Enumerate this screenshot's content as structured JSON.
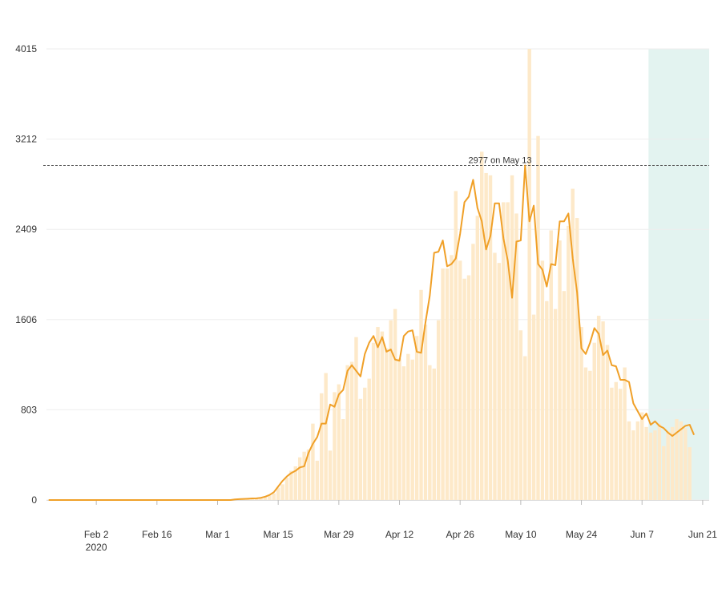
{
  "chart_data": {
    "type": "bar",
    "title": "",
    "xlabel": "",
    "ylabel": "",
    "x_start": "2020-01-22",
    "x_end": "2020-06-23",
    "xlim": [
      "2020-01-22",
      "2020-06-23"
    ],
    "ylim": [
      0,
      4015
    ],
    "y_ticks": [
      "0",
      "803",
      "1606",
      "2409",
      "3212",
      "4015"
    ],
    "x_ticks": [
      {
        "date": "2020-02-02",
        "label": "Feb 2",
        "sublabel": "2020"
      },
      {
        "date": "2020-02-16",
        "label": "Feb 16",
        "sublabel": ""
      },
      {
        "date": "2020-03-01",
        "label": "Mar 1",
        "sublabel": ""
      },
      {
        "date": "2020-03-15",
        "label": "Mar 15",
        "sublabel": ""
      },
      {
        "date": "2020-03-29",
        "label": "Mar 29",
        "sublabel": ""
      },
      {
        "date": "2020-04-12",
        "label": "Apr 12",
        "sublabel": ""
      },
      {
        "date": "2020-04-26",
        "label": "Apr 26",
        "sublabel": ""
      },
      {
        "date": "2020-05-10",
        "label": "May 10",
        "sublabel": ""
      },
      {
        "date": "2020-05-24",
        "label": "May 24",
        "sublabel": ""
      },
      {
        "date": "2020-06-07",
        "label": "Jun 7",
        "sublabel": ""
      },
      {
        "date": "2020-06-21",
        "label": "Jun 21",
        "sublabel": ""
      }
    ],
    "grid": true,
    "reference_line": {
      "value": 2977,
      "label": "2977 on May 13"
    },
    "highlight_range": [
      "2020-06-09",
      "2020-06-22"
    ],
    "colors": {
      "bars": "#fde9c9",
      "line": "#f0a028",
      "highlight": "#e3f3f0",
      "reference": "#555555"
    },
    "series": [
      {
        "type": "bar",
        "values": [
          0,
          0,
          0,
          0,
          0,
          0,
          0,
          0,
          0,
          0,
          0,
          0,
          0,
          0,
          0,
          0,
          0,
          0,
          0,
          0,
          0,
          0,
          0,
          0,
          0,
          0,
          0,
          0,
          0,
          0,
          0,
          0,
          0,
          0,
          0,
          0,
          0,
          0,
          0,
          0,
          0,
          0,
          0,
          5,
          5,
          10,
          10,
          15,
          15,
          25,
          30,
          40,
          60,
          110,
          140,
          200,
          260,
          300,
          380,
          430,
          450,
          680,
          350,
          950,
          1130,
          440,
          960,
          1030,
          720,
          1200,
          1230,
          1450,
          900,
          1000,
          1080,
          1400,
          1540,
          1500,
          1350,
          1600,
          1700,
          1260,
          1190,
          1300,
          1250,
          1460,
          1870,
          1560,
          1200,
          1170,
          1600,
          2060,
          2060,
          2180,
          2750,
          2130,
          1970,
          2000,
          2280,
          2530,
          3100,
          2910,
          2890,
          2200,
          2110,
          2650,
          2650,
          2890,
          2550,
          1510,
          1280,
          4015,
          1650,
          3240,
          2130,
          1770,
          2400,
          1700,
          2310,
          1860,
          2440,
          2770,
          2510,
          1540,
          1180,
          1150,
          1400,
          1640,
          1590,
          1380,
          1000,
          1050,
          990,
          1180,
          700,
          620,
          700,
          780,
          650,
          600,
          620,
          680,
          480,
          610,
          650,
          720,
          700,
          640,
          470
        ],
        "unit": "daily count"
      },
      {
        "type": "line",
        "name": "",
        "values": [
          0,
          0,
          0,
          0,
          0,
          0,
          0,
          0,
          0,
          0,
          0,
          0,
          0,
          0,
          0,
          0,
          0,
          0,
          0,
          0,
          0,
          0,
          0,
          0,
          0,
          0,
          0,
          0,
          0,
          0,
          0,
          0,
          0,
          0,
          0,
          0,
          0,
          0,
          0,
          0,
          0,
          0,
          0,
          5,
          8,
          10,
          12,
          14,
          15,
          20,
          30,
          45,
          70,
          120,
          170,
          210,
          240,
          260,
          290,
          300,
          420,
          500,
          560,
          680,
          680,
          850,
          830,
          940,
          980,
          1150,
          1200,
          1150,
          1100,
          1300,
          1400,
          1460,
          1360,
          1450,
          1320,
          1340,
          1250,
          1240,
          1460,
          1500,
          1510,
          1320,
          1310,
          1580,
          1820,
          2200,
          2210,
          2310,
          2080,
          2100,
          2150,
          2370,
          2650,
          2700,
          2850,
          2600,
          2480,
          2230,
          2350,
          2640,
          2640,
          2330,
          2130,
          1800,
          2300,
          2310,
          2977,
          2480,
          2620,
          2100,
          2050,
          1900,
          2100,
          2090,
          2480,
          2480,
          2550,
          2150,
          1850,
          1350,
          1300,
          1400,
          1530,
          1480,
          1290,
          1330,
          1200,
          1190,
          1070,
          1070,
          1050,
          860,
          790,
          720,
          770,
          670,
          700,
          660,
          640,
          600,
          570,
          600,
          630,
          660,
          670,
          580
        ]
      }
    ]
  }
}
